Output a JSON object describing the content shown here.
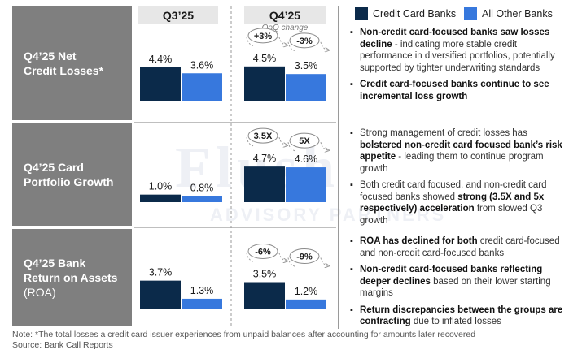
{
  "watermark": {
    "line1": "Flush",
    "line2": "ADVISORY PARTNERS"
  },
  "headers": {
    "q3": "Q3’25",
    "q4": "Q4’25",
    "qoq_caption": "QoQ change"
  },
  "legend": {
    "cc": "Credit Card Banks",
    "other": "All Other Banks"
  },
  "colors": {
    "cc": "#0b2a4a",
    "other": "#3778dd",
    "label_bg": "#7f7f7f",
    "header_bg": "#e7e7e7"
  },
  "rows": [
    {
      "label_line1": "Q4’25 Net",
      "label_line2": "Credit Losses*",
      "label_line3": ""
    },
    {
      "label_line1": "Q4’25 Card",
      "label_line2": "Portfolio Growth",
      "label_line3": ""
    },
    {
      "label_line1": "Q4’25 Bank",
      "label_line2": "Return on Assets",
      "label_line3": "(ROA)"
    }
  ],
  "chart_data": [
    {
      "type": "bar",
      "title": "Q4’25 Net Credit Losses*",
      "categories": [
        "Q3’25",
        "Q4’25"
      ],
      "series": [
        {
          "name": "Credit Card Banks",
          "values": [
            4.4,
            4.5
          ],
          "labels": [
            "4.4%",
            "4.5%"
          ]
        },
        {
          "name": "All Other Banks",
          "values": [
            3.6,
            3.5
          ],
          "labels": [
            "3.6%",
            "3.5%"
          ]
        }
      ],
      "qoq_change": [
        "+3%",
        "-3%"
      ],
      "ylim": [
        0,
        4.8
      ]
    },
    {
      "type": "bar",
      "title": "Q4’25 Card Portfolio Growth",
      "categories": [
        "Q3’25",
        "Q4’25"
      ],
      "series": [
        {
          "name": "Credit Card Banks",
          "values": [
            1.0,
            4.7
          ],
          "labels": [
            "1.0%",
            "4.7%"
          ]
        },
        {
          "name": "All Other Banks",
          "values": [
            0.8,
            4.6
          ],
          "labels": [
            "0.8%",
            "4.6%"
          ]
        }
      ],
      "qoq_change": [
        "3.5X",
        "5X"
      ],
      "ylim": [
        0,
        7.5
      ]
    },
    {
      "type": "bar",
      "title": "Q4’25 Bank Return on Assets (ROA)",
      "categories": [
        "Q3’25",
        "Q4’25"
      ],
      "series": [
        {
          "name": "Credit Card Banks",
          "values": [
            3.7,
            3.5
          ],
          "labels": [
            "3.7%",
            "3.5%"
          ]
        },
        {
          "name": "All Other Banks",
          "values": [
            1.3,
            1.2
          ],
          "labels": [
            "1.3%",
            "1.2%"
          ]
        }
      ],
      "qoq_change": [
        "-6%",
        "-9%"
      ],
      "ylim": [
        0,
        5.6
      ]
    }
  ],
  "commentary": {
    "row1": {
      "b1_bold": "Non-credit card-focused banks saw losses decline",
      "b1_rest": " - indicating more stable credit performance in diversified portfolios, potentially supported by tighter underwriting standards",
      "b2_bold": "Credit card-focused banks continue to see incremental loss growth"
    },
    "row2": {
      "b1_pre": "Strong management of credit losses has ",
      "b1_bold": "bolstered non-credit card focused bank’s risk appetite",
      "b1_rest": " - leading them to continue program growth",
      "b2_pre": "Both credit card focused, and non-credit card focused banks showed ",
      "b2_bold": "strong (3.5X and 5x respectively) acceleration",
      "b2_rest": " from slowed Q3 growth"
    },
    "row3": {
      "b1_bold": "ROA has declined for both",
      "b1_rest": " credit card-focused and non-credit card-focused banks",
      "b2_bold": "Non-credit card-focused banks reflecting deeper declines",
      "b2_rest": " based on their lower starting margins",
      "b3_bold": "Return discrepancies between the groups are contracting",
      "b3_rest": " due to inflated losses"
    }
  },
  "footnote": {
    "note": "Note: *The total losses a credit card issuer experiences from unpaid balances after accounting for amounts later recovered",
    "source": "Source: Bank Call Reports"
  }
}
